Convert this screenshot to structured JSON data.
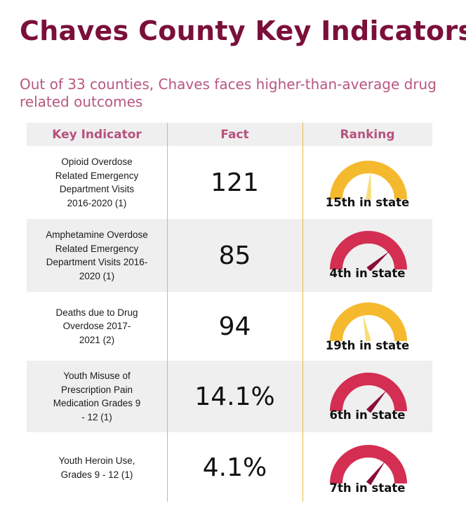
{
  "title": "Chaves County Key Indicators",
  "subtitle": "Out of 33 counties, Chaves faces higher-than-average drug related outcomes",
  "table": {
    "headers": {
      "indicator": "Key Indicator",
      "fact": "Fact",
      "ranking": "Ranking"
    },
    "rows": [
      {
        "indicator": "Opioid Overdose Related Emergency Department Visits 2016-2020 (1)",
        "fact": "121",
        "rank": "15th in state",
        "rank_value": 15,
        "gauge_color": "#f5b92e",
        "needle_color": "#f8de7b"
      },
      {
        "indicator": "Amphetamine Overdose Related Emergency Department Visits 2016-2020 (1)",
        "fact": "85",
        "rank": "4th in state",
        "rank_value": 4,
        "gauge_color": "#d42e52",
        "needle_color": "#8a0d3a"
      },
      {
        "indicator": "Deaths due to Drug Overdose 2017-2021 (2)",
        "fact": "94",
        "rank": "19th in state",
        "rank_value": 19,
        "gauge_color": "#f5b92e",
        "needle_color": "#f8de7b"
      },
      {
        "indicator": "Youth Misuse of Prescription Pain Medication Grades 9 - 12 (1)",
        "fact": "14.1%",
        "rank": "6th in state",
        "rank_value": 6,
        "gauge_color": "#d42e52",
        "needle_color": "#8a0d3a"
      },
      {
        "indicator": "Youth Heroin Use, Grades 9 - 12 (1)",
        "fact": "4.1%",
        "rank": "7th in state",
        "rank_value": 7,
        "gauge_color": "#d42e52",
        "needle_color": "#8a0d3a"
      }
    ]
  }
}
